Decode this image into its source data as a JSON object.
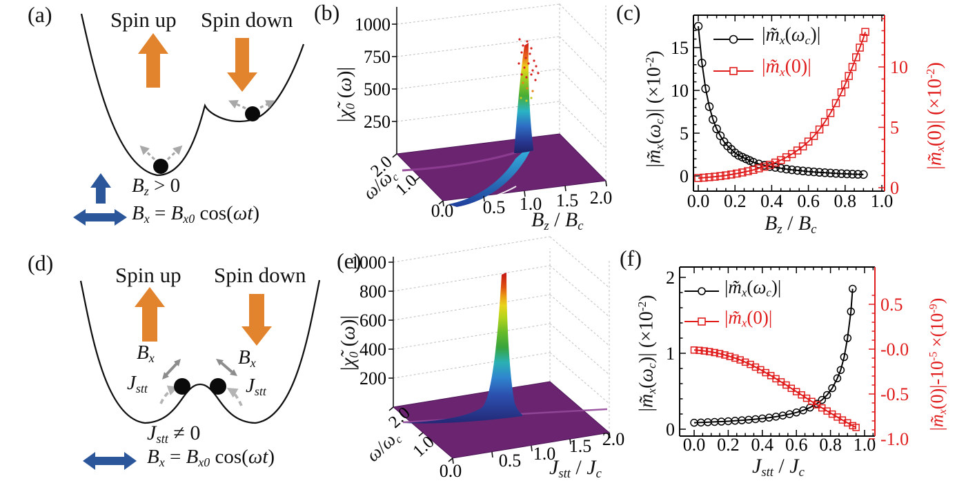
{
  "figure": {
    "panel_labels": {
      "a": "(a)",
      "b": "(b)",
      "c": "(c)",
      "d": "(d)",
      "e": "(e)",
      "f": "(f)"
    },
    "colors": {
      "orange_arrow": "#e2832e",
      "blue_arrow": "#2b579a",
      "series_black": "#000000",
      "series_red": "#e01b1b",
      "floor_purple": "#6b2470",
      "ridge_purple": "#8f3f94",
      "gray_arrow": "#a8a8a8",
      "dark_gray_arrow": "#8c8c8c",
      "ball_black": "#0a0a0a"
    }
  },
  "panel_a": {
    "spin_up": "Spin up",
    "spin_down": "Spin down",
    "bz_condition": [
      [
        "B",
        "i"
      ],
      [
        "z",
        "isub"
      ],
      [
        " > 0",
        ""
      ]
    ],
    "bx_drive": [
      [
        "B",
        "i"
      ],
      [
        "x",
        "isub"
      ],
      [
        " = ",
        ""
      ],
      [
        "B",
        "i"
      ],
      [
        "x0",
        "isub"
      ],
      [
        " cos(",
        ""
      ],
      [
        "ω",
        "i"
      ],
      [
        "t",
        "i"
      ],
      [
        ")",
        ""
      ]
    ]
  },
  "panel_d": {
    "spin_up": "Spin up",
    "spin_down": "Spin down",
    "bx_label": [
      [
        "B",
        "i"
      ],
      [
        "x",
        "isub"
      ]
    ],
    "jstt_label": [
      [
        "J",
        "i"
      ],
      [
        "stt",
        "isub"
      ]
    ],
    "jstt_condition": [
      [
        "J",
        "i"
      ],
      [
        "stt",
        "isub"
      ],
      [
        " ≠ 0",
        ""
      ]
    ],
    "bx_drive": [
      [
        "B",
        "i"
      ],
      [
        "x",
        "isub"
      ],
      [
        " = ",
        ""
      ],
      [
        "B",
        "i"
      ],
      [
        "x0",
        "isub"
      ],
      [
        " cos(",
        ""
      ],
      [
        "ω",
        "i"
      ],
      [
        "t",
        "i"
      ],
      [
        ")",
        ""
      ]
    ]
  },
  "chart_data": [
    {
      "id": "b",
      "type": "surface",
      "z_title": [
        [
          "|",
          ""
        ],
        [
          "χ̃",
          "i"
        ],
        [
          "0",
          "isub"
        ],
        [
          " (",
          ""
        ],
        [
          "ω",
          "i"
        ],
        [
          ")|",
          ""
        ]
      ],
      "x_title": [
        [
          "B",
          "i"
        ],
        [
          "z",
          "isub"
        ],
        [
          " / ",
          ""
        ],
        [
          "B",
          "i"
        ],
        [
          "c",
          "isub"
        ]
      ],
      "y_title": [
        [
          "ω",
          "i"
        ],
        [
          "/",
          ""
        ],
        [
          "ω",
          "i"
        ],
        [
          "c",
          "isub"
        ]
      ],
      "z_tick_labels": [
        "250",
        "500",
        "750",
        "1000"
      ],
      "y_tick_labels": [
        "2.0",
        "1.0"
      ],
      "corner_label": "0.0",
      "x_tick_labels": [
        "0.5",
        "1.0",
        "1.5",
        "2.0"
      ],
      "xlim": [
        0,
        2
      ],
      "ylim": [
        0,
        2
      ],
      "zlim": [
        0,
        1000
      ],
      "surface": "flat near-zero purple sheet with divergent rainbow resonance spike",
      "peak": {
        "x_at": 1.0,
        "z_approx": 850
      }
    },
    {
      "id": "c",
      "type": "line",
      "x_title": [
        [
          "B",
          "i"
        ],
        [
          "z",
          "isub"
        ],
        [
          " / ",
          ""
        ],
        [
          "B",
          "i"
        ],
        [
          "c",
          "isub"
        ]
      ],
      "yl_title": [
        [
          "|",
          ""
        ],
        [
          "m̃",
          "i"
        ],
        [
          "x",
          "isub"
        ],
        [
          "(",
          ""
        ],
        [
          "ω",
          "i"
        ],
        [
          "c",
          "isub"
        ],
        [
          ")| (×10",
          ""
        ],
        [
          "-2",
          "sup"
        ],
        [
          ")",
          ""
        ]
      ],
      "yr_title": [
        [
          "|",
          ""
        ],
        [
          "m̃",
          "i"
        ],
        [
          "x",
          "isub"
        ],
        [
          "(0)| (×10",
          ""
        ],
        [
          "-2",
          "sup"
        ],
        [
          ")",
          ""
        ]
      ],
      "x_tick_labels": [
        "0.0",
        "0.2",
        "0.4",
        "0.6",
        "0.8",
        "1.0"
      ],
      "yl_tick_labels": [
        "0",
        "5",
        "10",
        "15"
      ],
      "yr_tick_labels": [
        "0",
        "5",
        "10"
      ],
      "xlim": [
        -0.05,
        1.05
      ],
      "yl_lim": [
        -2,
        18.5
      ],
      "yr_lim": [
        0,
        14.3
      ],
      "series": [
        {
          "label": [
            [
              "|",
              ""
            ],
            [
              "m̃",
              "i"
            ],
            [
              "x",
              "isub"
            ],
            [
              "(",
              ""
            ],
            [
              "ω",
              "i"
            ],
            [
              "c",
              "isub"
            ],
            [
              ")|",
              ""
            ]
          ],
          "color": "#000000",
          "marker": "circle",
          "axis": "left",
          "x": [
            0,
            0.02,
            0.04,
            0.06,
            0.08,
            0.1,
            0.12,
            0.14,
            0.16,
            0.18,
            0.2,
            0.22,
            0.24,
            0.26,
            0.28,
            0.3,
            0.33,
            0.36,
            0.39,
            0.42,
            0.45,
            0.48,
            0.51,
            0.54,
            0.57,
            0.6,
            0.63,
            0.66,
            0.69,
            0.72,
            0.75,
            0.78,
            0.81,
            0.84,
            0.87,
            0.9
          ],
          "y": [
            17.5,
            13.2,
            10.2,
            8.1,
            6.6,
            5.5,
            4.7,
            4.0,
            3.5,
            3.1,
            2.7,
            2.4,
            2.2,
            2.0,
            1.8,
            1.6,
            1.4,
            1.25,
            1.1,
            1.0,
            0.9,
            0.8,
            0.72,
            0.65,
            0.58,
            0.52,
            0.47,
            0.42,
            0.38,
            0.34,
            0.3,
            0.27,
            0.24,
            0.21,
            0.19,
            0.17
          ]
        },
        {
          "label": [
            [
              "|",
              ""
            ],
            [
              "m̃",
              "i"
            ],
            [
              "x",
              "isub"
            ],
            [
              "(0)|",
              ""
            ]
          ],
          "color": "#e01b1b",
          "marker": "square",
          "axis": "right",
          "x": [
            0,
            0.03,
            0.06,
            0.09,
            0.12,
            0.15,
            0.18,
            0.21,
            0.24,
            0.27,
            0.3,
            0.33,
            0.36,
            0.39,
            0.42,
            0.45,
            0.48,
            0.51,
            0.54,
            0.57,
            0.6,
            0.63,
            0.66,
            0.69,
            0.72,
            0.75,
            0.78,
            0.8,
            0.82,
            0.84,
            0.86,
            0.88,
            0.9,
            0.91
          ],
          "y": [
            0.8,
            0.83,
            0.87,
            0.91,
            0.96,
            1.02,
            1.09,
            1.17,
            1.26,
            1.36,
            1.47,
            1.6,
            1.74,
            1.9,
            2.08,
            2.28,
            2.52,
            2.78,
            3.08,
            3.42,
            3.82,
            4.28,
            4.82,
            5.45,
            6.18,
            7.0,
            7.9,
            8.55,
            9.25,
            10.0,
            10.8,
            11.6,
            12.4,
            12.9
          ]
        }
      ]
    },
    {
      "id": "e",
      "type": "surface",
      "z_title": [
        [
          "|",
          ""
        ],
        [
          "χ̃",
          "i"
        ],
        [
          "0",
          "isub"
        ],
        [
          " (",
          ""
        ],
        [
          "ω",
          "i"
        ],
        [
          ")|",
          ""
        ]
      ],
      "x_title": [
        [
          "J",
          "i"
        ],
        [
          "stt",
          "isub"
        ],
        [
          " / ",
          ""
        ],
        [
          "J",
          "i"
        ],
        [
          "c",
          "isub"
        ]
      ],
      "y_title": [
        [
          "ω",
          "i"
        ],
        [
          "/",
          ""
        ],
        [
          "ω",
          "i"
        ],
        [
          "c",
          "isub"
        ]
      ],
      "z_tick_labels": [
        "200",
        "400",
        "600",
        "800",
        "1000"
      ],
      "y_tick_labels": [
        "2.0",
        "1.0"
      ],
      "corner_label": "0.0",
      "x_tick_labels": [
        "0.5",
        "1.0",
        "1.5",
        "2.0"
      ],
      "xlim": [
        0,
        2
      ],
      "ylim": [
        0,
        2
      ],
      "zlim": [
        0,
        1000
      ],
      "surface": "flat near-zero purple sheet with single divergent rainbow spike",
      "peak": {
        "x_at": 0.55,
        "z_approx": 950
      }
    },
    {
      "id": "f",
      "type": "line",
      "x_title": [
        [
          "J",
          "i"
        ],
        [
          "stt",
          "isub"
        ],
        [
          " / ",
          ""
        ],
        [
          "J",
          "i"
        ],
        [
          "c",
          "isub"
        ]
      ],
      "yl_title": [
        [
          "|",
          ""
        ],
        [
          "m̃",
          "i"
        ],
        [
          "x",
          "isub"
        ],
        [
          "(",
          ""
        ],
        [
          "ω",
          "i"
        ],
        [
          "c",
          "isub"
        ],
        [
          ")| (×10",
          ""
        ],
        [
          "-2",
          "sup"
        ],
        [
          ")",
          ""
        ]
      ],
      "yr_title": [
        [
          "|",
          ""
        ],
        [
          "m̃",
          "i"
        ],
        [
          "x",
          "isub"
        ],
        [
          "(0)|-10",
          ""
        ],
        [
          "-5",
          "sup"
        ],
        [
          " ×(10",
          ""
        ],
        [
          "-9",
          "sup"
        ],
        [
          ")",
          ""
        ]
      ],
      "x_tick_labels": [
        "0.0",
        "0.2",
        "0.4",
        "0.6",
        "0.8",
        "1.0"
      ],
      "yl_tick_labels": [
        "0",
        "1",
        "2"
      ],
      "yr_tick_labels": [
        "0.5",
        "-0.0",
        "-0.5",
        "-1.0"
      ],
      "xlim": [
        -0.08,
        1.06
      ],
      "yl_lim": [
        -0.1,
        2.15
      ],
      "yr_lim": [
        -1.0,
        0.7
      ],
      "series": [
        {
          "label": [
            [
              "|",
              ""
            ],
            [
              "m̃",
              "i"
            ],
            [
              "x",
              "isub"
            ],
            [
              "(",
              ""
            ],
            [
              "ω",
              "i"
            ],
            [
              "c",
              "isub"
            ],
            [
              ")|",
              ""
            ]
          ],
          "color": "#000000",
          "marker": "circle",
          "axis": "left",
          "x": [
            0,
            0.04,
            0.08,
            0.12,
            0.16,
            0.2,
            0.24,
            0.28,
            0.32,
            0.36,
            0.4,
            0.44,
            0.48,
            0.52,
            0.56,
            0.6,
            0.64,
            0.68,
            0.72,
            0.75,
            0.78,
            0.81,
            0.84,
            0.86,
            0.88,
            0.9,
            0.92,
            0.93
          ],
          "y": [
            0.085,
            0.088,
            0.092,
            0.096,
            0.1,
            0.105,
            0.111,
            0.117,
            0.124,
            0.132,
            0.141,
            0.152,
            0.165,
            0.18,
            0.198,
            0.22,
            0.248,
            0.285,
            0.335,
            0.385,
            0.45,
            0.54,
            0.67,
            0.78,
            0.95,
            1.2,
            1.55,
            1.85
          ]
        },
        {
          "label": [
            [
              "|",
              ""
            ],
            [
              "m̃",
              "i"
            ],
            [
              "x",
              "isub"
            ],
            [
              "(0)|",
              ""
            ]
          ],
          "color": "#e01b1b",
          "marker": "square",
          "axis": "right",
          "x": [
            0,
            0.03,
            0.06,
            0.09,
            0.12,
            0.15,
            0.18,
            0.21,
            0.24,
            0.27,
            0.3,
            0.33,
            0.36,
            0.39,
            0.42,
            0.45,
            0.48,
            0.51,
            0.54,
            0.57,
            0.6,
            0.63,
            0.66,
            0.69,
            0.72,
            0.75,
            0.78,
            0.81,
            0.84,
            0.87,
            0.9,
            0.93,
            0.95
          ],
          "y": [
            -0.01,
            -0.014,
            -0.02,
            -0.028,
            -0.038,
            -0.05,
            -0.065,
            -0.082,
            -0.1,
            -0.12,
            -0.145,
            -0.17,
            -0.2,
            -0.23,
            -0.262,
            -0.295,
            -0.33,
            -0.365,
            -0.4,
            -0.437,
            -0.474,
            -0.51,
            -0.547,
            -0.583,
            -0.62,
            -0.655,
            -0.69,
            -0.724,
            -0.757,
            -0.79,
            -0.822,
            -0.853,
            -0.873
          ]
        }
      ]
    }
  ]
}
